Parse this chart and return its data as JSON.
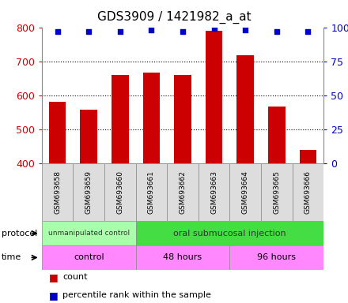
{
  "title": "GDS3909 / 1421982_a_at",
  "samples": [
    "GSM693658",
    "GSM693659",
    "GSM693660",
    "GSM693661",
    "GSM693662",
    "GSM693663",
    "GSM693664",
    "GSM693665",
    "GSM693666"
  ],
  "counts": [
    582,
    558,
    660,
    668,
    660,
    790,
    718,
    568,
    440
  ],
  "percentile_ranks": [
    97,
    97,
    97,
    98,
    97,
    99,
    98,
    97,
    97
  ],
  "ylim_left": [
    400,
    800
  ],
  "ylim_right": [
    0,
    100
  ],
  "yticks_left": [
    400,
    500,
    600,
    700,
    800
  ],
  "yticks_right": [
    0,
    25,
    50,
    75,
    100
  ],
  "bar_color": "#cc0000",
  "dot_color": "#0000cc",
  "bar_width": 0.55,
  "protocol_groups": [
    {
      "label": "unmanipulated control",
      "start": 0,
      "end": 3,
      "color": "#aaffaa"
    },
    {
      "label": "oral submucosal injection",
      "start": 3,
      "end": 9,
      "color": "#44dd44"
    }
  ],
  "time_color": "#ff88ff",
  "time_groups": [
    {
      "label": "control",
      "start": 0,
      "end": 3
    },
    {
      "label": "48 hours",
      "start": 3,
      "end": 6
    },
    {
      "label": "96 hours",
      "start": 6,
      "end": 9
    }
  ],
  "left_axis_color": "#cc0000",
  "right_axis_color": "#0000cc",
  "grid_color": "#000000",
  "sample_box_color": "#dddddd",
  "background_color": "#ffffff",
  "title_fontsize": 11
}
